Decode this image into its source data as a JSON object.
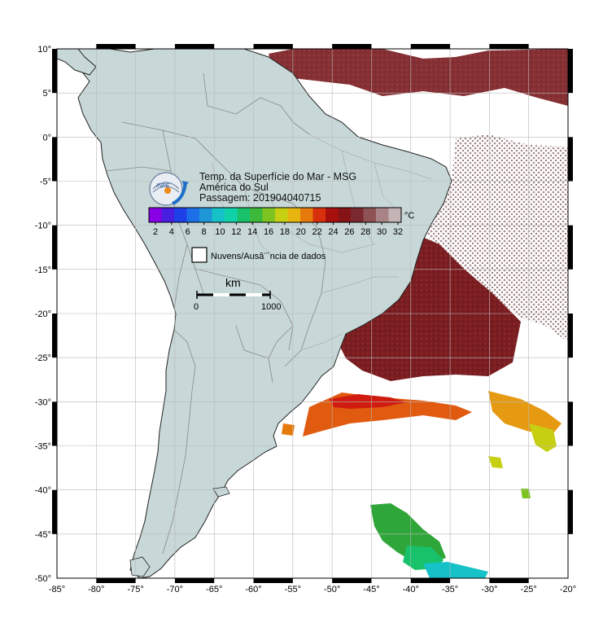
{
  "map": {
    "title_lines": [
      "Temp. da Superfície do Mar - MSG",
      "América do Sul",
      "Passagem: 201904040715"
    ],
    "lon_ticks": [
      "-85°",
      "-80°",
      "-75°",
      "-70°",
      "-65°",
      "-60°",
      "-55°",
      "-50°",
      "-45°",
      "-40°",
      "-35°",
      "-30°",
      "-25°",
      "-20°"
    ],
    "lat_ticks": [
      "10°",
      "5°",
      "0°",
      "-5°",
      "-10°",
      "-15°",
      "-20°",
      "-25°",
      "-30°",
      "-35°",
      "-40°",
      "-45°",
      "-50°"
    ],
    "colorbar": {
      "unit": "°C",
      "labels": [
        "2",
        "4",
        "6",
        "8",
        "10",
        "12",
        "14",
        "16",
        "18",
        "20",
        "22",
        "24",
        "26",
        "28",
        "30",
        "32"
      ],
      "colors": [
        "#8a00e6",
        "#4a1ee0",
        "#1e40e8",
        "#1c6fe8",
        "#1e96d8",
        "#16c2c8",
        "#10d2a8",
        "#18c26a",
        "#3cb83a",
        "#7ec420",
        "#c6cf12",
        "#e8b410",
        "#e67a0c",
        "#d8300c",
        "#a8100e",
        "#861416",
        "#7a2a2e",
        "#8e5254",
        "#a88486",
        "#c4b4b6"
      ]
    },
    "legend_missing_label": "Nuvens/Ausâ¨´ncia de dados",
    "scale": {
      "unit": "km",
      "start_label": "0",
      "end_label": "1000"
    },
    "colors": {
      "land": "#c8d8d8",
      "ocean": "#ffffff",
      "grid": "#b8b8b8",
      "coast": "#222222",
      "border": "#888888"
    }
  }
}
